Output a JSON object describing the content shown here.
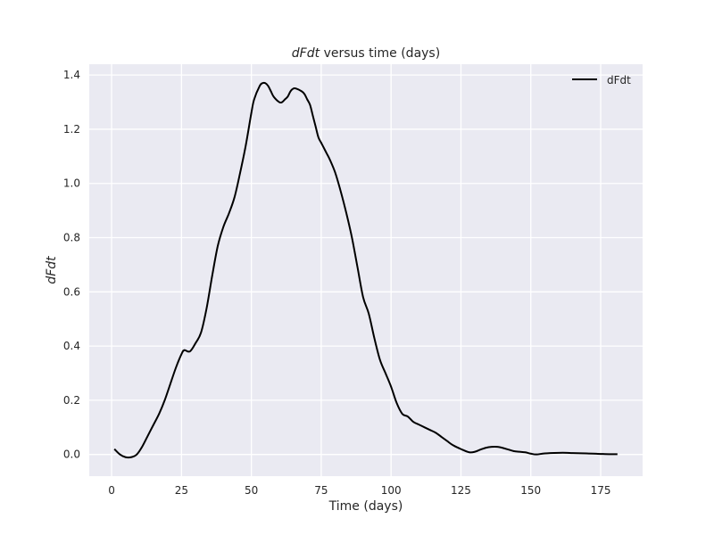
{
  "chart_data": {
    "type": "line",
    "title": "dFdt versus time (days)",
    "title_italic_part": "dFdt",
    "title_rest": " versus time (days)",
    "xlabel": "Time (days)",
    "ylabel": "dFdt",
    "xlim": [
      -8,
      190
    ],
    "ylim": [
      -0.08,
      1.44
    ],
    "xticks": [
      0,
      25,
      50,
      75,
      100,
      125,
      150,
      175
    ],
    "yticks": [
      0.0,
      0.2,
      0.4,
      0.6,
      0.8,
      1.0,
      1.2,
      1.4
    ],
    "grid": true,
    "legend_position": "top-right",
    "colors": {
      "background": "#eaeaf2",
      "grid": "#ffffff",
      "line": "#000000"
    },
    "series": [
      {
        "name": "dFdt",
        "color": "#000000",
        "x": [
          1,
          3,
          5,
          7,
          9,
          11,
          13,
          15,
          17,
          19,
          21,
          23,
          25,
          26,
          28,
          30,
          32,
          34,
          36,
          38,
          40,
          42,
          44,
          46,
          48,
          50,
          51,
          53,
          54,
          55,
          56,
          57,
          58,
          60,
          61,
          62,
          63,
          64,
          65,
          66,
          68,
          69,
          70,
          71,
          72,
          73,
          74,
          75,
          76,
          77,
          78,
          80,
          82,
          84,
          86,
          88,
          90,
          92,
          94,
          96,
          98,
          100,
          102,
          104,
          106,
          108,
          110,
          112,
          114,
          116,
          118,
          120,
          122,
          125,
          128,
          130,
          132,
          134,
          136,
          138,
          140,
          142,
          144,
          146,
          148,
          150,
          152,
          155,
          160,
          163,
          165,
          170,
          175,
          178,
          181
        ],
        "values": [
          0.02,
          0.0,
          -0.01,
          -0.01,
          0.0,
          0.03,
          0.07,
          0.11,
          0.15,
          0.2,
          0.26,
          0.32,
          0.37,
          0.385,
          0.38,
          0.41,
          0.45,
          0.54,
          0.66,
          0.77,
          0.84,
          0.89,
          0.95,
          1.04,
          1.14,
          1.26,
          1.31,
          1.36,
          1.37,
          1.37,
          1.36,
          1.34,
          1.32,
          1.3,
          1.3,
          1.31,
          1.32,
          1.34,
          1.35,
          1.35,
          1.34,
          1.33,
          1.31,
          1.29,
          1.25,
          1.21,
          1.17,
          1.15,
          1.13,
          1.11,
          1.09,
          1.04,
          0.97,
          0.89,
          0.8,
          0.69,
          0.58,
          0.52,
          0.43,
          0.35,
          0.3,
          0.25,
          0.19,
          0.15,
          0.14,
          0.12,
          0.11,
          0.1,
          0.09,
          0.08,
          0.065,
          0.05,
          0.035,
          0.02,
          0.008,
          0.01,
          0.018,
          0.025,
          0.028,
          0.028,
          0.024,
          0.018,
          0.012,
          0.01,
          0.008,
          0.003,
          0.0,
          0.004,
          0.006,
          0.006,
          0.005,
          0.004,
          0.002,
          0.001,
          0.001
        ]
      }
    ]
  }
}
